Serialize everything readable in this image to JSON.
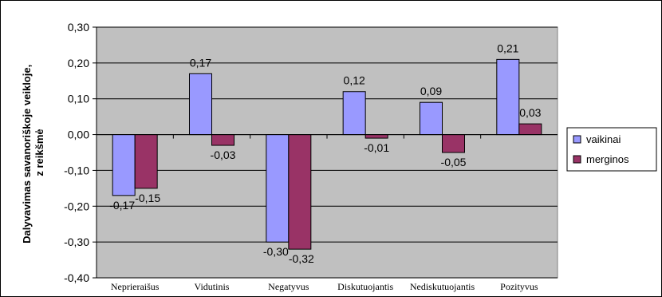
{
  "chart_data": {
    "type": "bar",
    "categories": [
      "Neprieraišus",
      "Vidutinis",
      "Negatyvus",
      "Diskutuojantis",
      "Nediskutuojantis",
      "Pozityvus"
    ],
    "series": [
      {
        "name": "vaikinai",
        "values": [
          -0.17,
          0.17,
          -0.3,
          0.12,
          0.09,
          0.21
        ],
        "labels": [
          "-0,17",
          "0,17",
          "-0,30",
          "0,12",
          "0,09",
          "0,21"
        ],
        "color": "#9999FF"
      },
      {
        "name": "merginos",
        "values": [
          -0.15,
          -0.03,
          -0.32,
          -0.01,
          -0.05,
          0.03
        ],
        "labels": [
          "-0,15",
          "-0,03",
          "-0,32",
          "-0,01",
          "-0,05",
          "0,03"
        ],
        "color": "#993366"
      }
    ],
    "yticks": [
      0.3,
      0.2,
      0.1,
      0.0,
      -0.1,
      -0.2,
      -0.3,
      -0.4
    ],
    "ytick_labels": [
      "0,30",
      "0,20",
      "0,10",
      "0,00",
      "-0,10",
      "-0,20",
      "-0,30",
      "-0,40"
    ],
    "ylim": [
      -0.4,
      0.3
    ],
    "ylabel_line1": "Dalyvavimas savanoriškoje veikloje,",
    "ylabel_line2": "z reikšmė",
    "xlabel": "",
    "plot_background": "#C0C0C0",
    "grid": true,
    "legend": {
      "position": "right"
    }
  }
}
